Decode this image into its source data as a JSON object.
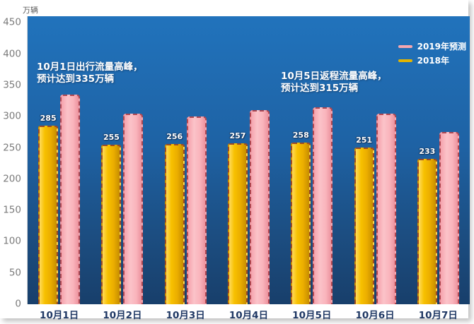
{
  "colors": {
    "plot_bg_top": "#2173bc",
    "plot_bg_bottom": "#183f6b",
    "bar_2018": "#f0b400",
    "bar_2019": "#f9bcc3",
    "bar_2018_border": "#9e4a24",
    "bar_2019_border": "#b04750",
    "annotation_text": "#ffffff",
    "x_label": "#1f3864",
    "y_label": "#7a7a7a"
  },
  "chart_data": {
    "type": "bar",
    "title": "",
    "unit_label": "万辆",
    "xlabel": "",
    "ylabel": "万辆",
    "ylim": [
      0,
      450
    ],
    "y_ticks": [
      450,
      400,
      350,
      300,
      250,
      200,
      150,
      100,
      50,
      0
    ],
    "grid": false,
    "legend_position": "top-right",
    "categories": [
      "10月1日",
      "10月2日",
      "10月3日",
      "10月4日",
      "10月5日",
      "10月6日",
      "10月7日"
    ],
    "series": [
      {
        "name": "2019年预测",
        "role": "2019",
        "values": [
          335,
          305,
          300,
          310,
          315,
          305,
          275
        ],
        "show_value_labels": false,
        "swatch_color": "#f5a7b0"
      },
      {
        "name": "2018年",
        "role": "2018",
        "values": [
          285,
          255,
          256,
          257,
          258,
          251,
          233
        ],
        "show_value_labels": true,
        "swatch_color": "#e5b500"
      }
    ],
    "annotations": [
      {
        "line1": "10月1日出行流量高峰，",
        "line2": "预计达到335万辆"
      },
      {
        "line1": "10月5日返程流量高峰，",
        "line2": "预计达到315万辆"
      }
    ]
  }
}
